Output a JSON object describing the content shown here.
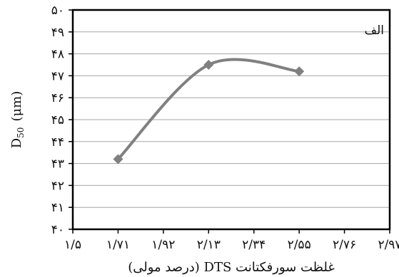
{
  "chart_data": {
    "type": "line",
    "title": "",
    "panel_label": "الف",
    "xlabel": "غلظت سورفکتانت DTS (درصد مولی)",
    "ylabel_main": "D",
    "ylabel_sub": "50",
    "ylabel_unit": "(μm)",
    "xlim": [
      1.5,
      2.97
    ],
    "ylim": [
      40,
      50
    ],
    "x_ticks": [
      1.5,
      1.71,
      1.92,
      2.13,
      2.34,
      2.55,
      2.76,
      2.97
    ],
    "x_tick_labels": [
      "۱/۵",
      "۱/۷۱",
      "۱/۹۲",
      "۲/۱۳",
      "۲/۳۴",
      "۲/۵۵",
      "۲/۷۶",
      "۲/۹۷"
    ],
    "y_ticks": [
      40,
      41,
      42,
      43,
      44,
      45,
      46,
      47,
      48,
      49,
      50
    ],
    "y_tick_labels": [
      "۴۰",
      "۴۱",
      "۴۲",
      "۴۳",
      "۴۴",
      "۴۵",
      "۴۶",
      "۴۷",
      "۴۸",
      "۴۹",
      "۵۰"
    ],
    "grid": true,
    "series": [
      {
        "x": [
          1.71,
          2.13,
          2.55
        ],
        "values": [
          43.2,
          47.5,
          47.2
        ],
        "color": "#808080",
        "marker": "diamond",
        "smooth": true
      }
    ]
  }
}
